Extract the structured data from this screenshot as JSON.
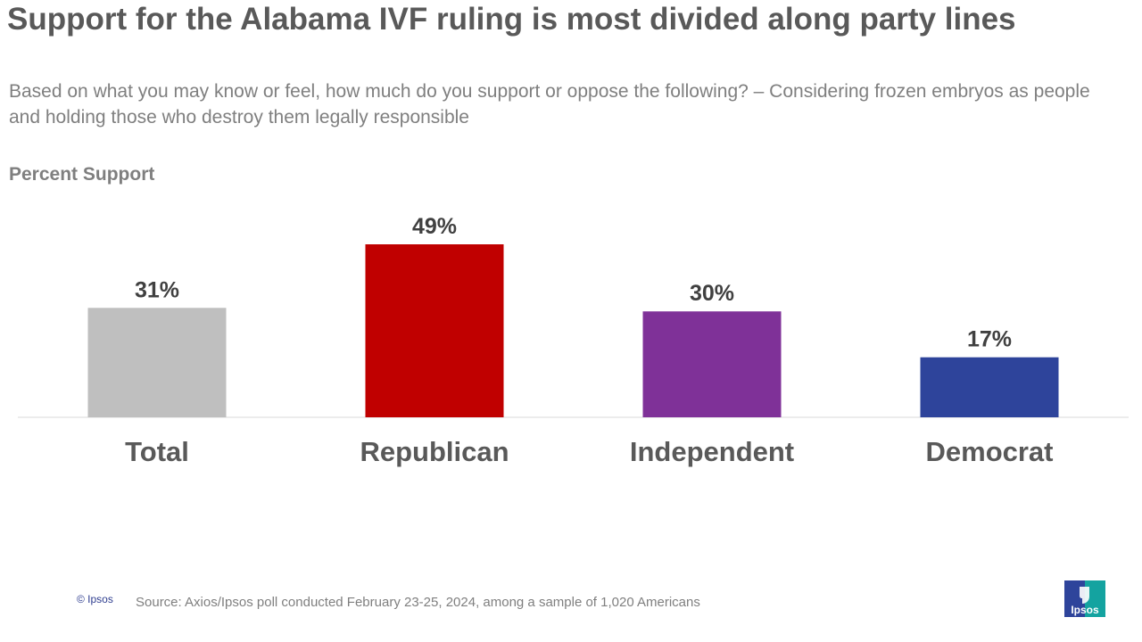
{
  "title": "Support for the Alabama IVF ruling is most divided along party lines",
  "subtitle": "Based on what you may know or feel, how much do you support or oppose the following? – Considering frozen embryos as people and holding those who destroy them legally responsible",
  "measure_label": "Percent Support",
  "chart_data": {
    "type": "bar",
    "title": "Support for the Alabama IVF ruling is most divided along party lines",
    "subtitle": "Based on what you may know or feel, how much do you support or oppose the following? – Considering frozen embryos as people and holding those who destroy them legally responsible",
    "ylabel": "Percent Support",
    "xlabel": "",
    "categories": [
      "Total",
      "Republican",
      "Independent",
      "Democrat"
    ],
    "values": [
      31,
      49,
      30,
      17
    ],
    "data_labels": [
      "31%",
      "49%",
      "30%",
      "17%"
    ],
    "colors": [
      "#bfbfbf",
      "#c00000",
      "#7f3198",
      "#2e449b"
    ],
    "ylim": [
      0,
      49
    ],
    "grid": false,
    "legend": "none"
  },
  "footer": {
    "copyright": "© Ipsos",
    "source": "Source: Axios/Ipsos poll conducted February 23-25, 2024, among a sample of 1,020 Americans"
  },
  "brand": {
    "logo_text": "Ipsos",
    "colors": [
      "#2e449b",
      "#14a3a0"
    ]
  }
}
